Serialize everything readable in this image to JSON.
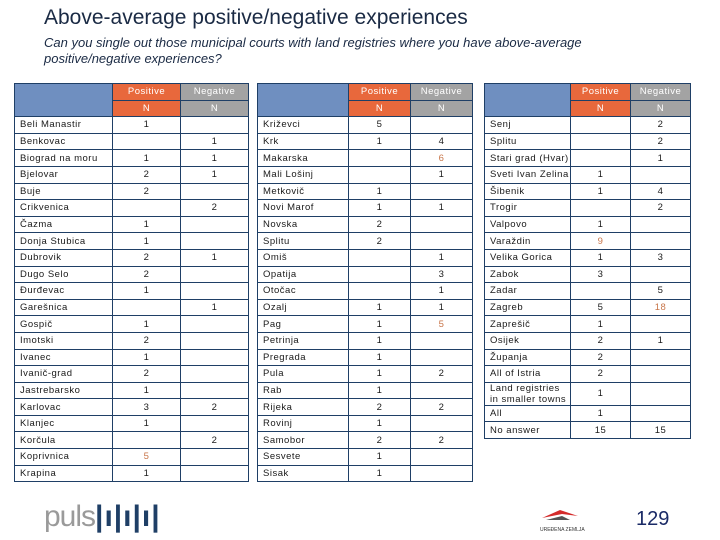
{
  "title": "Above-average positive/negative experiences",
  "subtitle": "Can you single out those municipal courts with land registries where you have above-average positive/negative experiences?",
  "headers": {
    "positive": "Positive",
    "negative": "Negative",
    "n": "N"
  },
  "colors": {
    "positive_header": "#e8683c",
    "negative_header": "#a3a3a3",
    "border": "#1f3f66",
    "highlight": "#c8764a"
  },
  "tables": [
    {
      "rows": [
        {
          "name": "Beli Manastir",
          "pos": "1",
          "neg": ""
        },
        {
          "name": "Benkovac",
          "pos": "",
          "neg": "1"
        },
        {
          "name": "Biograd na moru",
          "pos": "1",
          "neg": "1"
        },
        {
          "name": "Bjelovar",
          "pos": "2",
          "neg": "1"
        },
        {
          "name": "Buje",
          "pos": "2",
          "neg": ""
        },
        {
          "name": "Crikvenica",
          "pos": "",
          "neg": "2"
        },
        {
          "name": "Čazma",
          "pos": "1",
          "neg": ""
        },
        {
          "name": "Donja Stubica",
          "pos": "1",
          "neg": ""
        },
        {
          "name": "Dubrovik",
          "pos": "2",
          "neg": "1"
        },
        {
          "name": "Dugo Selo",
          "pos": "2",
          "neg": ""
        },
        {
          "name": "Đurđevac",
          "pos": "1",
          "neg": ""
        },
        {
          "name": "Garešnica",
          "pos": "",
          "neg": "1"
        },
        {
          "name": "Gospič",
          "pos": "1",
          "neg": ""
        },
        {
          "name": "Imotski",
          "pos": "2",
          "neg": ""
        },
        {
          "name": "Ivanec",
          "pos": "1",
          "neg": ""
        },
        {
          "name": "Ivanič-grad",
          "pos": "2",
          "neg": ""
        },
        {
          "name": "Jastrebarsko",
          "pos": "1",
          "neg": ""
        },
        {
          "name": "Karlovac",
          "pos": "3",
          "neg": "2"
        },
        {
          "name": "Klanjec",
          "pos": "1",
          "neg": ""
        },
        {
          "name": "Korčula",
          "pos": "",
          "neg": "2"
        },
        {
          "name": "Koprivnica",
          "pos": "5",
          "neg": "",
          "highlight": "pos"
        },
        {
          "name": "Krapina",
          "pos": "1",
          "neg": ""
        }
      ]
    },
    {
      "rows": [
        {
          "name": "Križevci",
          "pos": "5",
          "neg": ""
        },
        {
          "name": "Krk",
          "pos": "1",
          "neg": "4"
        },
        {
          "name": "Makarska",
          "pos": "",
          "neg": "6",
          "highlight": "neg"
        },
        {
          "name": "Mali Lošinj",
          "pos": "",
          "neg": "1"
        },
        {
          "name": "Metkovič",
          "pos": "1",
          "neg": ""
        },
        {
          "name": "Novi Marof",
          "pos": "1",
          "neg": "1"
        },
        {
          "name": "Novska",
          "pos": "2",
          "neg": ""
        },
        {
          "name": "Splitu",
          "pos": "2",
          "neg": ""
        },
        {
          "name": "Omiš",
          "pos": "",
          "neg": "1"
        },
        {
          "name": "Opatija",
          "pos": "",
          "neg": "3"
        },
        {
          "name": "Otočac",
          "pos": "",
          "neg": "1"
        },
        {
          "name": "Ozalj",
          "pos": "1",
          "neg": "1"
        },
        {
          "name": "Pag",
          "pos": "1",
          "neg": "5",
          "highlight": "neg"
        },
        {
          "name": "Petrinja",
          "pos": "1",
          "neg": ""
        },
        {
          "name": "Pregrada",
          "pos": "1",
          "neg": ""
        },
        {
          "name": "Pula",
          "pos": "1",
          "neg": "2"
        },
        {
          "name": "Rab",
          "pos": "1",
          "neg": ""
        },
        {
          "name": "Rijeka",
          "pos": "2",
          "neg": "2"
        },
        {
          "name": "Rovinj",
          "pos": "1",
          "neg": ""
        },
        {
          "name": "Samobor",
          "pos": "2",
          "neg": "2"
        },
        {
          "name": "Sesvete",
          "pos": "1",
          "neg": ""
        },
        {
          "name": "Sisak",
          "pos": "1",
          "neg": ""
        }
      ]
    },
    {
      "rows": [
        {
          "name": "Senj",
          "pos": "",
          "neg": "2"
        },
        {
          "name": "Splitu",
          "pos": "",
          "neg": "2"
        },
        {
          "name": "Stari grad (Hvar)",
          "pos": "",
          "neg": "1"
        },
        {
          "name": "Sveti Ivan Zelina",
          "pos": "1",
          "neg": ""
        },
        {
          "name": "Šibenik",
          "pos": "1",
          "neg": "4"
        },
        {
          "name": "Trogir",
          "pos": "",
          "neg": "2"
        },
        {
          "name": "Valpovo",
          "pos": "1",
          "neg": ""
        },
        {
          "name": "Varaždin",
          "pos": "9",
          "neg": "",
          "highlight": "pos"
        },
        {
          "name": "Velika Gorica",
          "pos": "1",
          "neg": "3"
        },
        {
          "name": "Zabok",
          "pos": "3",
          "neg": ""
        },
        {
          "name": "Zadar",
          "pos": "",
          "neg": "5"
        },
        {
          "name": "Zagreb",
          "pos": "5",
          "neg": "18",
          "highlight": "neg"
        },
        {
          "name": "Zaprešič",
          "pos": "1",
          "neg": ""
        },
        {
          "name": "Osijek",
          "pos": "2",
          "neg": "1"
        },
        {
          "name": "Županja",
          "pos": "2",
          "neg": ""
        },
        {
          "name": "All of Istria",
          "pos": "2",
          "neg": ""
        },
        {
          "name": "Land registries in smaller towns",
          "pos": "1",
          "neg": ""
        },
        {
          "name": "All",
          "pos": "1",
          "neg": ""
        },
        {
          "name": "No answer",
          "pos": "15",
          "neg": "15"
        }
      ]
    }
  ],
  "footer": {
    "logo": "puls",
    "sponsor_logo": "UREĐENA ZEMLJA",
    "page_number": "129"
  }
}
